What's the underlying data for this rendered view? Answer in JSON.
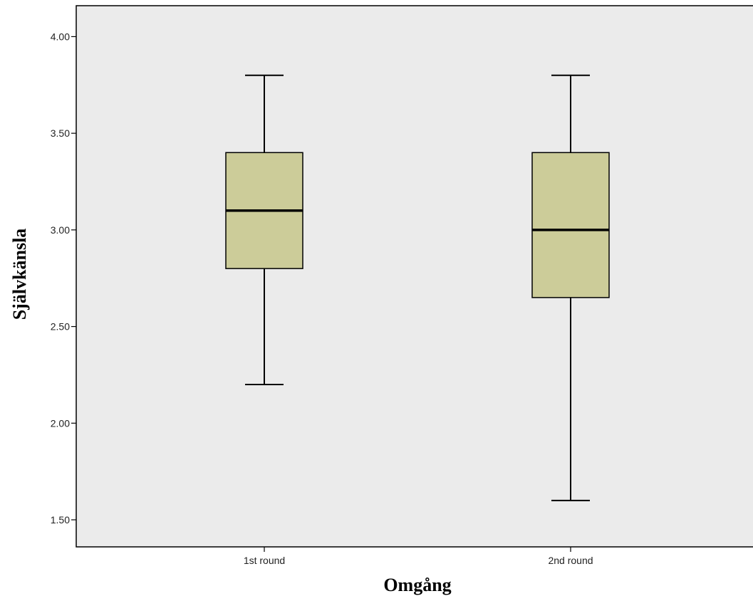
{
  "chart_data": {
    "type": "boxplot",
    "xlabel": "Omgång",
    "ylabel": "Självkänsla",
    "ylim": [
      1.36,
      4.16
    ],
    "yticks": [
      1.5,
      2.0,
      2.5,
      3.0,
      3.5,
      4.0
    ],
    "ytick_labels": [
      "1.50",
      "2.00",
      "2.50",
      "3.00",
      "3.50",
      "4.00"
    ],
    "categories": [
      "1st round",
      "2nd round"
    ],
    "boxes": [
      {
        "category": "1st round",
        "min": 2.2,
        "q1": 2.8,
        "median": 3.1,
        "q3": 3.4,
        "max": 3.8
      },
      {
        "category": "2nd round",
        "min": 1.6,
        "q1": 2.65,
        "median": 3.0,
        "q3": 3.4,
        "max": 3.8
      }
    ],
    "grid": false,
    "colors": {
      "plot_background": "#ebebeb",
      "box_fill": "#cccc99",
      "line": "#000000"
    }
  }
}
